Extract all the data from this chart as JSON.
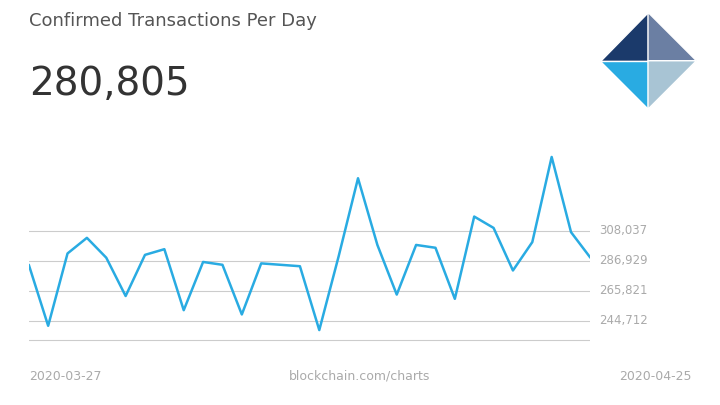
{
  "title": "Confirmed Transactions Per Day",
  "subtitle": "280,805",
  "watermark": "blockchain.com/charts",
  "x_left_label": "2020-03-27",
  "x_right_label": "2020-04-25",
  "y_ticks": [
    244712,
    265821,
    286929,
    308037
  ],
  "y_tick_labels": [
    "244,712",
    "265,821",
    "286,929",
    "308,037"
  ],
  "line_color": "#29ABE2",
  "background_color": "#ffffff",
  "grid_color": "#cccccc",
  "title_color": "#555555",
  "subtitle_color": "#333333",
  "tick_label_color": "#aaaaaa",
  "watermark_color": "#aaaaaa",
  "x_values": [
    0,
    1,
    2,
    3,
    4,
    5,
    6,
    7,
    8,
    9,
    10,
    11,
    12,
    13,
    14,
    15,
    16,
    17,
    18,
    19,
    20,
    21,
    22,
    23,
    24,
    25,
    26,
    27,
    28,
    29
  ],
  "y_values": [
    284000,
    241000,
    292000,
    303000,
    289000,
    262000,
    291000,
    295000,
    252000,
    286000,
    284000,
    249000,
    285000,
    284000,
    283000,
    238000,
    290000,
    345000,
    298000,
    263000,
    298000,
    296000,
    260000,
    318000,
    310000,
    280000,
    300000,
    360000,
    307000,
    289000
  ]
}
